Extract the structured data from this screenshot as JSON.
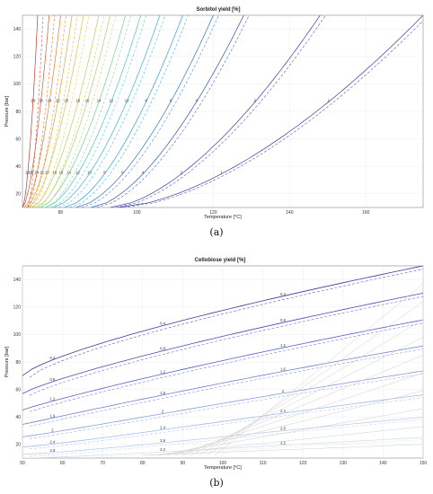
{
  "chart_data": [
    {
      "type": "contour",
      "panel_label": "(a)",
      "title": "Sorbitol yield [%]",
      "xlabel": "Temperature [°C]",
      "ylabel": "Pressure [bar]",
      "xlim": [
        70,
        175
      ],
      "ylim": [
        10,
        150
      ],
      "xticks": [
        80,
        100,
        120,
        140,
        160
      ],
      "yticks": [
        20,
        40,
        60,
        80,
        100,
        120,
        140
      ],
      "colors": [
        "#c0392b",
        "#e67e22",
        "#d4c93a",
        "#a8d26a",
        "#44c7c0",
        "#2e9fd6",
        "#2b4db5",
        "#3a3a9a"
      ],
      "levels": [
        {
          "value": 1,
          "x_at_p10": 95,
          "x_at_p150": 175,
          "label": "1"
        },
        {
          "value": 2,
          "x_at_p10": 93,
          "x_at_p150": 148,
          "label": "2"
        },
        {
          "value": 4,
          "x_at_p10": 88,
          "x_at_p150": 128,
          "label": "4"
        },
        {
          "value": 6,
          "x_at_p10": 84,
          "x_at_p150": 120,
          "label": "6"
        },
        {
          "value": 8,
          "x_at_p10": 81,
          "x_at_p150": 112,
          "label": "8"
        },
        {
          "value": 10,
          "x_at_p10": 78,
          "x_at_p150": 106,
          "label": "10"
        },
        {
          "value": 12,
          "x_at_p10": 76,
          "x_at_p150": 101,
          "label": "12"
        },
        {
          "value": 14,
          "x_at_p10": 74.5,
          "x_at_p150": 97,
          "label": "14"
        },
        {
          "value": 16,
          "x_at_p10": 73.5,
          "x_at_p150": 93,
          "label": "16"
        },
        {
          "value": 18,
          "x_at_p10": 72.5,
          "x_at_p150": 90,
          "label": "18"
        },
        {
          "value": 20,
          "x_at_p10": 71.5,
          "x_at_p150": 86,
          "label": "20"
        },
        {
          "value": 22,
          "x_at_p10": 71,
          "x_at_p150": 83,
          "label": "22"
        },
        {
          "value": 24,
          "x_at_p10": 70.5,
          "x_at_p150": 80,
          "label": "24"
        },
        {
          "value": 26,
          "x_at_p10": 70,
          "x_at_p150": 77,
          "label": "26"
        },
        {
          "value": 28,
          "x_at_p10": 70,
          "x_at_p150": 74,
          "label": "28"
        }
      ]
    },
    {
      "type": "contour",
      "panel_label": "(b)",
      "title": "Cellobiose yield [%]",
      "xlabel": "Temperature [°C]",
      "ylabel": "Pressure [bar]",
      "xlim": [
        50,
        150
      ],
      "ylim": [
        10,
        150
      ],
      "xticks": [
        50,
        60,
        70,
        80,
        90,
        100,
        110,
        120,
        130,
        140,
        150
      ],
      "yticks": [
        20,
        40,
        60,
        80,
        100,
        120,
        140
      ],
      "colors": [
        "#3a3a9a",
        "#4d5bc0",
        "#7b8fd6",
        "#a9c2e8",
        "#cfe3ef"
      ],
      "levels": [
        {
          "value": 0.4,
          "label": "0.4"
        },
        {
          "value": 0.8,
          "label": "0.8"
        },
        {
          "value": 1.2,
          "label": "1.2"
        },
        {
          "value": 1.6,
          "label": "1.6"
        },
        {
          "value": 2,
          "label": "2"
        },
        {
          "value": 2.4,
          "label": "2.4"
        },
        {
          "value": 2.8,
          "label": "2.8"
        },
        {
          "value": 3.2,
          "label": "3.2"
        }
      ]
    }
  ]
}
